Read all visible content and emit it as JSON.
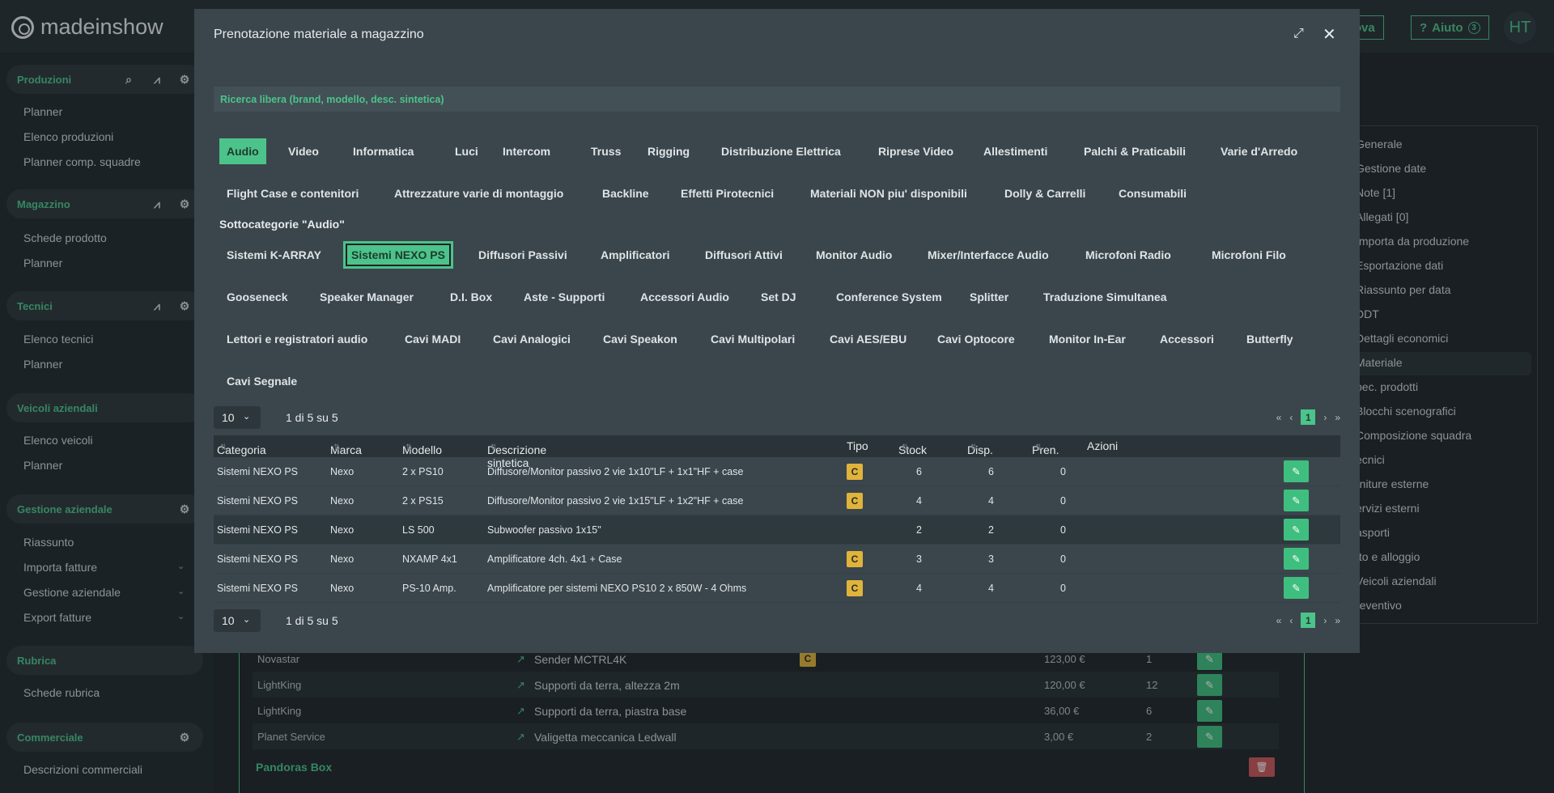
{
  "app": {
    "brand": "madeinshow",
    "prova_label": "rova",
    "help_label": "Aiuto",
    "help_count": "3",
    "avatar": "HT"
  },
  "sidebar": {
    "sections": [
      {
        "label": "Produzioni",
        "items": [
          "Planner",
          "Elenco produzioni",
          "Planner comp. squadre"
        ]
      },
      {
        "label": "Magazzino",
        "items": [
          "Schede prodotto",
          "Planner"
        ]
      },
      {
        "label": "Tecnici",
        "items": [
          "Elenco tecnici",
          "Planner"
        ]
      },
      {
        "label": "Veicoli aziendali",
        "items": [
          "Elenco veicoli",
          "Planner"
        ]
      },
      {
        "label": "Gestione aziendale",
        "items": [
          "Riassunto",
          "Importa fatture",
          "Gestione aziendale",
          "Export fatture"
        ]
      },
      {
        "label": "Rubrica",
        "items": [
          "Schede rubrica"
        ]
      },
      {
        "label": "Commerciale",
        "items": [
          "Descrizioni commerciali"
        ]
      }
    ]
  },
  "right_menu": [
    "Generale",
    "Gestione date",
    "Note [1]",
    "Allegati [0]",
    "Importa da produzione",
    "Esportazione dati",
    "Riassunto per data",
    "DDT",
    "Dettagli economici",
    "Materiale",
    "pec. prodotti",
    "Blocchi scenografici",
    "Composizione squadra",
    "ecnici",
    "rniture esterne",
    "ervizi esterni",
    "asporti",
    "tto e alloggio",
    "Veicoli aziendali",
    "reventivo"
  ],
  "bg_table": {
    "rows": [
      {
        "brand": "Novastar",
        "desc": "Sender MCTRL4K",
        "badge": "C",
        "price": "123,00 €",
        "qty": "1"
      },
      {
        "brand": "LightKing",
        "desc": "Supporti da terra, altezza 2m",
        "badge": "",
        "price": "120,00 €",
        "qty": "12"
      },
      {
        "brand": "LightKing",
        "desc": "Supporti da terra, piastra base",
        "badge": "",
        "price": "36,00 €",
        "qty": "6"
      },
      {
        "brand": "Planet Service",
        "desc": "Valigetta meccanica Ledwall",
        "badge": "",
        "price": "3,00 €",
        "qty": "2"
      }
    ],
    "group_label": "Pandoras Box"
  },
  "modal": {
    "title": "Prenotazione materiale a magazzino",
    "search_placeholder": "Ricerca libera (brand, modello, desc. sintetica)",
    "categories": [
      "Audio",
      "Video",
      "Informatica",
      "Luci",
      "Intercom",
      "Truss",
      "Rigging",
      "Distribuzione Elettrica",
      "Riprese Video",
      "Allestimenti",
      "Palchi & Praticabili",
      "Varie d'Arredo",
      "Flight Case e contenitori",
      "Attrezzature varie di montaggio",
      "Backline",
      "Effetti Pirotecnici",
      "Materiali NON piu' disponibili",
      "Dolly & Carrelli",
      "Consumabili"
    ],
    "subcategory_heading": "Sottocategorie \"Audio\"",
    "subcategories": [
      "Sistemi K-ARRAY",
      "Sistemi NEXO PS",
      "Diffusori Passivi",
      "Amplificatori",
      "Diffusori Attivi",
      "Monitor Audio",
      "Mixer/Interfacce Audio",
      "Microfoni Radio",
      "Microfoni Filo",
      "Gooseneck",
      "Speaker Manager",
      "D.I. Box",
      "Aste - Supporti",
      "Accessori Audio",
      "Set DJ",
      "Conference System",
      "Splitter",
      "Traduzione Simultanea",
      "Lettori e registratori audio",
      "Cavi MADI",
      "Cavi Analogici",
      "Cavi Speakon",
      "Cavi Multipolari",
      "Cavi AES/EBU",
      "Cavi Optocore",
      "Monitor In-Ear",
      "Accessori",
      "Butterfly",
      "Cavi Segnale"
    ],
    "pager": {
      "page_size": "10",
      "info": "1 di 5 su 5",
      "current_page": "1"
    },
    "columns": [
      "Categoria",
      "Marca",
      "Modello",
      "Descrizione sintetica",
      "Tipo",
      "Stock",
      "Disp.",
      "Pren.",
      "Azioni"
    ],
    "rows": [
      {
        "categoria": "Sistemi NEXO PS",
        "marca": "Nexo",
        "modello": "2 x PS10",
        "descrizione": "Diffusore/Monitor passivo 2 vie 1x10\"LF + 1x1\"HF + case",
        "tipo": "C",
        "stock": "6",
        "disp": "6",
        "pren": "0"
      },
      {
        "categoria": "Sistemi NEXO PS",
        "marca": "Nexo",
        "modello": "2 x PS15",
        "descrizione": "Diffusore/Monitor passivo 2 vie 1x15\"LF + 1x2\"HF + case",
        "tipo": "C",
        "stock": "4",
        "disp": "4",
        "pren": "0"
      },
      {
        "categoria": "Sistemi NEXO PS",
        "marca": "Nexo",
        "modello": "LS 500",
        "descrizione": "Subwoofer passivo 1x15\"",
        "tipo": "",
        "stock": "2",
        "disp": "2",
        "pren": "0"
      },
      {
        "categoria": "Sistemi NEXO PS",
        "marca": "Nexo",
        "modello": "NXAMP 4x1",
        "descrizione": "Amplificatore 4ch. 4x1 + Case",
        "tipo": "C",
        "stock": "3",
        "disp": "3",
        "pren": "0"
      },
      {
        "categoria": "Sistemi NEXO PS",
        "marca": "Nexo",
        "modello": "PS-10 Amp.",
        "descrizione": "Amplificatore per sistemi NEXO PS10 2 x 850W - 4 Ohms",
        "tipo": "C",
        "stock": "4",
        "disp": "4",
        "pren": "0"
      }
    ]
  }
}
